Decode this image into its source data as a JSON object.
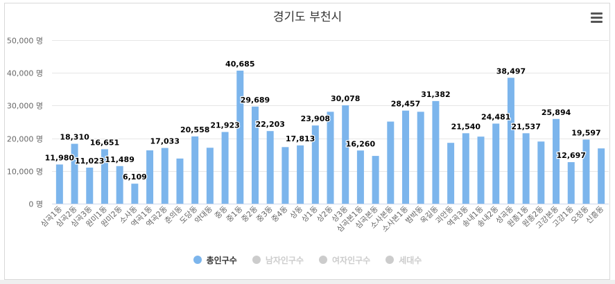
{
  "chart_data": {
    "type": "bar",
    "title": "경기도 부천시",
    "xlabel": "",
    "ylabel": "",
    "ylim": [
      0,
      50000
    ],
    "y_ticks": [
      0,
      10000,
      20000,
      30000,
      40000,
      50000
    ],
    "y_tick_labels": [
      "0 명",
      "10,000 명",
      "20,000 명",
      "30,000 명",
      "40,000 명",
      "50,000 명"
    ],
    "grid": true,
    "categories": [
      "심곡1동",
      "심곡2동",
      "심곡3동",
      "원미1동",
      "원미2동",
      "소사동",
      "역곡1동",
      "역곡2동",
      "춘의동",
      "도당동",
      "약대동",
      "중동",
      "중1동",
      "중2동",
      "중3동",
      "중4동",
      "상동",
      "상1동",
      "상2동",
      "상3동",
      "심곡본1동",
      "심곡본동",
      "소사본동",
      "소사본1동",
      "범박동",
      "옥길동",
      "괴안동",
      "역곡3동",
      "송내1동",
      "송내2동",
      "성곡동",
      "원종1동",
      "원종2동",
      "고강본동",
      "고강1동",
      "오정동",
      "신흥동"
    ],
    "series": [
      {
        "name": "총인구수",
        "color": "#7cb5ec",
        "values": [
          11980,
          18310,
          11023,
          16651,
          11489,
          6109,
          16300,
          17033,
          13800,
          20558,
          17100,
          21923,
          40685,
          29689,
          22203,
          17300,
          17813,
          23908,
          28100,
          30078,
          16260,
          14600,
          25100,
          28457,
          28100,
          31382,
          18600,
          21540,
          20500,
          24481,
          38497,
          21537,
          19000,
          25894,
          12697,
          19597,
          16900
        ],
        "labels": [
          "11,980",
          "18,310",
          "11,023",
          "16,651",
          "11,489",
          "6,109",
          "",
          "17,033",
          "",
          "20,558",
          "",
          "21,923",
          "40,685",
          "29,689",
          "22,203",
          "",
          "17,813",
          "23,908",
          "",
          "30,078",
          "16,260",
          "",
          "",
          "28,457",
          "",
          "31,382",
          "",
          "21,540",
          "",
          "24,481",
          "38,497",
          "21,537",
          "",
          "25,894",
          "12,697",
          "19,597",
          ""
        ]
      }
    ],
    "legend_position": "bottom-center"
  },
  "legend": {
    "items": [
      {
        "label": "총인구수",
        "color": "#7cb5ec",
        "active": "true"
      },
      {
        "label": "남자인구수",
        "color": "#cccccc",
        "active": "false"
      },
      {
        "label": "여자인구수",
        "color": "#cccccc",
        "active": "false"
      },
      {
        "label": "세대수",
        "color": "#cccccc",
        "active": "false"
      }
    ]
  },
  "menu": {
    "icon": "hamburger-menu-icon"
  }
}
